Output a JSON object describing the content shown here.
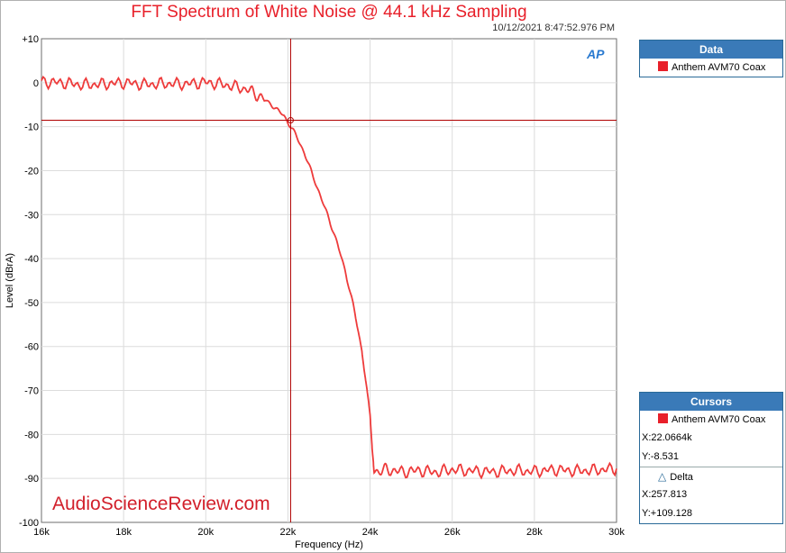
{
  "header": {
    "title": "FFT Spectrum of White Noise @ 44.1 kHz Sampling",
    "timestamp": "10/12/2021 8:47:52.976 PM",
    "logo": "AP"
  },
  "watermark": "AudioScienceReview.com",
  "data_panel": {
    "title": "Data",
    "entry": "Anthem AVM70 Coax"
  },
  "cursors_panel": {
    "title": "Cursors",
    "entry": "Anthem AVM70 Coax",
    "x": "X:22.0664k",
    "y": "Y:-8.531",
    "delta_label": "Delta",
    "delta_x": "X:257.813",
    "delta_y": "Y:+109.128"
  },
  "colors": {
    "trace": "#ee3b3b",
    "cursor": "#b00000",
    "grid": "#dcdcdc",
    "accent": "#3a7ab8"
  },
  "chart_data": {
    "type": "line",
    "xlabel": "Frequency (Hz)",
    "ylabel": "Level (dBrA)",
    "xlim": [
      16000,
      30000
    ],
    "ylim": [
      -100,
      10
    ],
    "x_ticks": [
      16000,
      18000,
      20000,
      22000,
      24000,
      26000,
      28000,
      30000
    ],
    "x_tick_labels": [
      "16k",
      "18k",
      "20k",
      "22k",
      "24k",
      "26k",
      "28k",
      "30k"
    ],
    "y_ticks": [
      10,
      0,
      -10,
      -20,
      -30,
      -40,
      -50,
      -60,
      -70,
      -80,
      -90,
      -100
    ],
    "y_tick_labels": [
      "+10",
      "0",
      "-10",
      "-20",
      "-30",
      "-40",
      "-50",
      "-60",
      "-70",
      "-80",
      "-90",
      "-100"
    ],
    "grid": true,
    "cursor": {
      "x": 22066.4,
      "y": -8.531
    },
    "series": [
      {
        "name": "Anthem AVM70 Coax",
        "x": [
          16000,
          16500,
          17000,
          17500,
          18000,
          18500,
          19000,
          19500,
          20000,
          20500,
          21000,
          21300,
          21600,
          21900,
          22000,
          22200,
          22400,
          22600,
          22800,
          23000,
          23200,
          23400,
          23600,
          23800,
          23900,
          24000,
          24050,
          24100,
          24200,
          24400,
          24800,
          25200,
          25600,
          26000,
          26500,
          27000,
          27500,
          28000,
          28500,
          29000,
          29500,
          30000
        ],
        "values": [
          0.2,
          0.0,
          -0.5,
          -0.3,
          0.0,
          -0.4,
          -0.2,
          -0.3,
          0.1,
          -0.5,
          -1.5,
          -3.0,
          -5.0,
          -7.5,
          -9.0,
          -12.0,
          -16.0,
          -21.0,
          -26.0,
          -31.0,
          -36.5,
          -43.0,
          -51.0,
          -61.0,
          -68.0,
          -76.0,
          -83.0,
          -88.0,
          -88.5,
          -88.0,
          -88.5,
          -88.2,
          -88.6,
          -88.0,
          -88.3,
          -88.5,
          -88.2,
          -88.4,
          -88.0,
          -88.3,
          -88.1,
          -87.8
        ]
      }
    ]
  }
}
